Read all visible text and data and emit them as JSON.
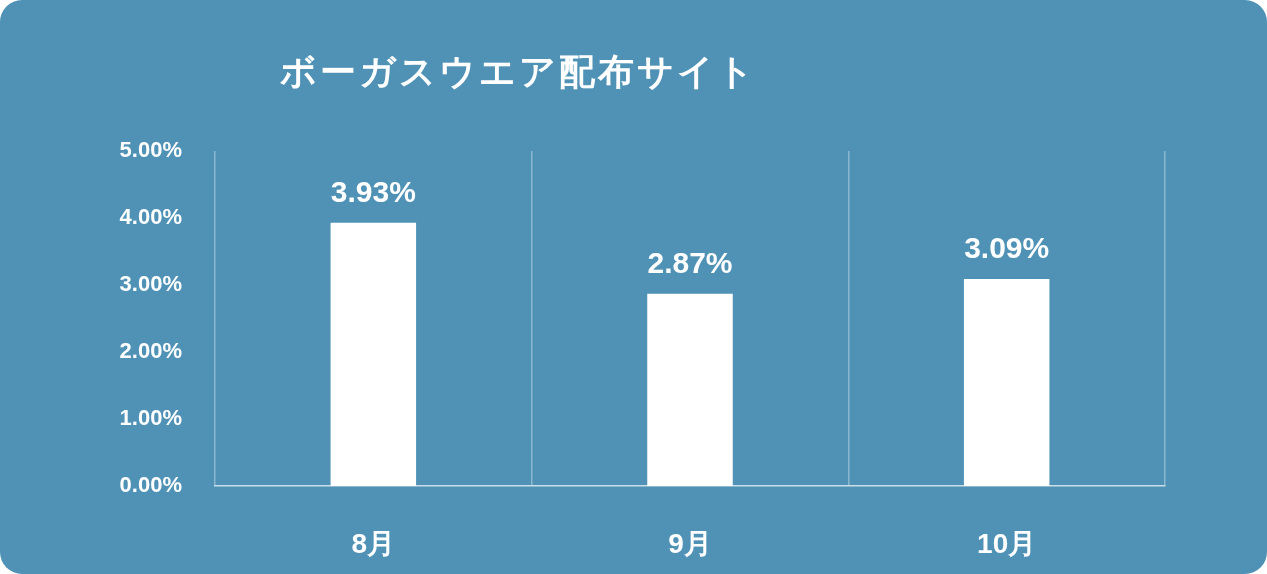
{
  "chart_data": {
    "type": "bar",
    "title": "ボーガスウエア配布サイト",
    "categories": [
      "8月",
      "9月",
      "10月"
    ],
    "values": [
      3.93,
      2.87,
      3.09
    ],
    "value_labels": [
      "3.93%",
      "2.87%",
      "3.09%"
    ],
    "color": "#ffffff",
    "ylim": [
      0,
      5
    ],
    "yticks": [
      {
        "value": 0,
        "label": "0.00%"
      },
      {
        "value": 1,
        "label": "1.00%"
      },
      {
        "value": 2,
        "label": "2.00%"
      },
      {
        "value": 3,
        "label": "3.00%"
      },
      {
        "value": 4,
        "label": "4.00%"
      },
      {
        "value": 5,
        "label": "5.00%"
      }
    ],
    "grid": "x"
  }
}
